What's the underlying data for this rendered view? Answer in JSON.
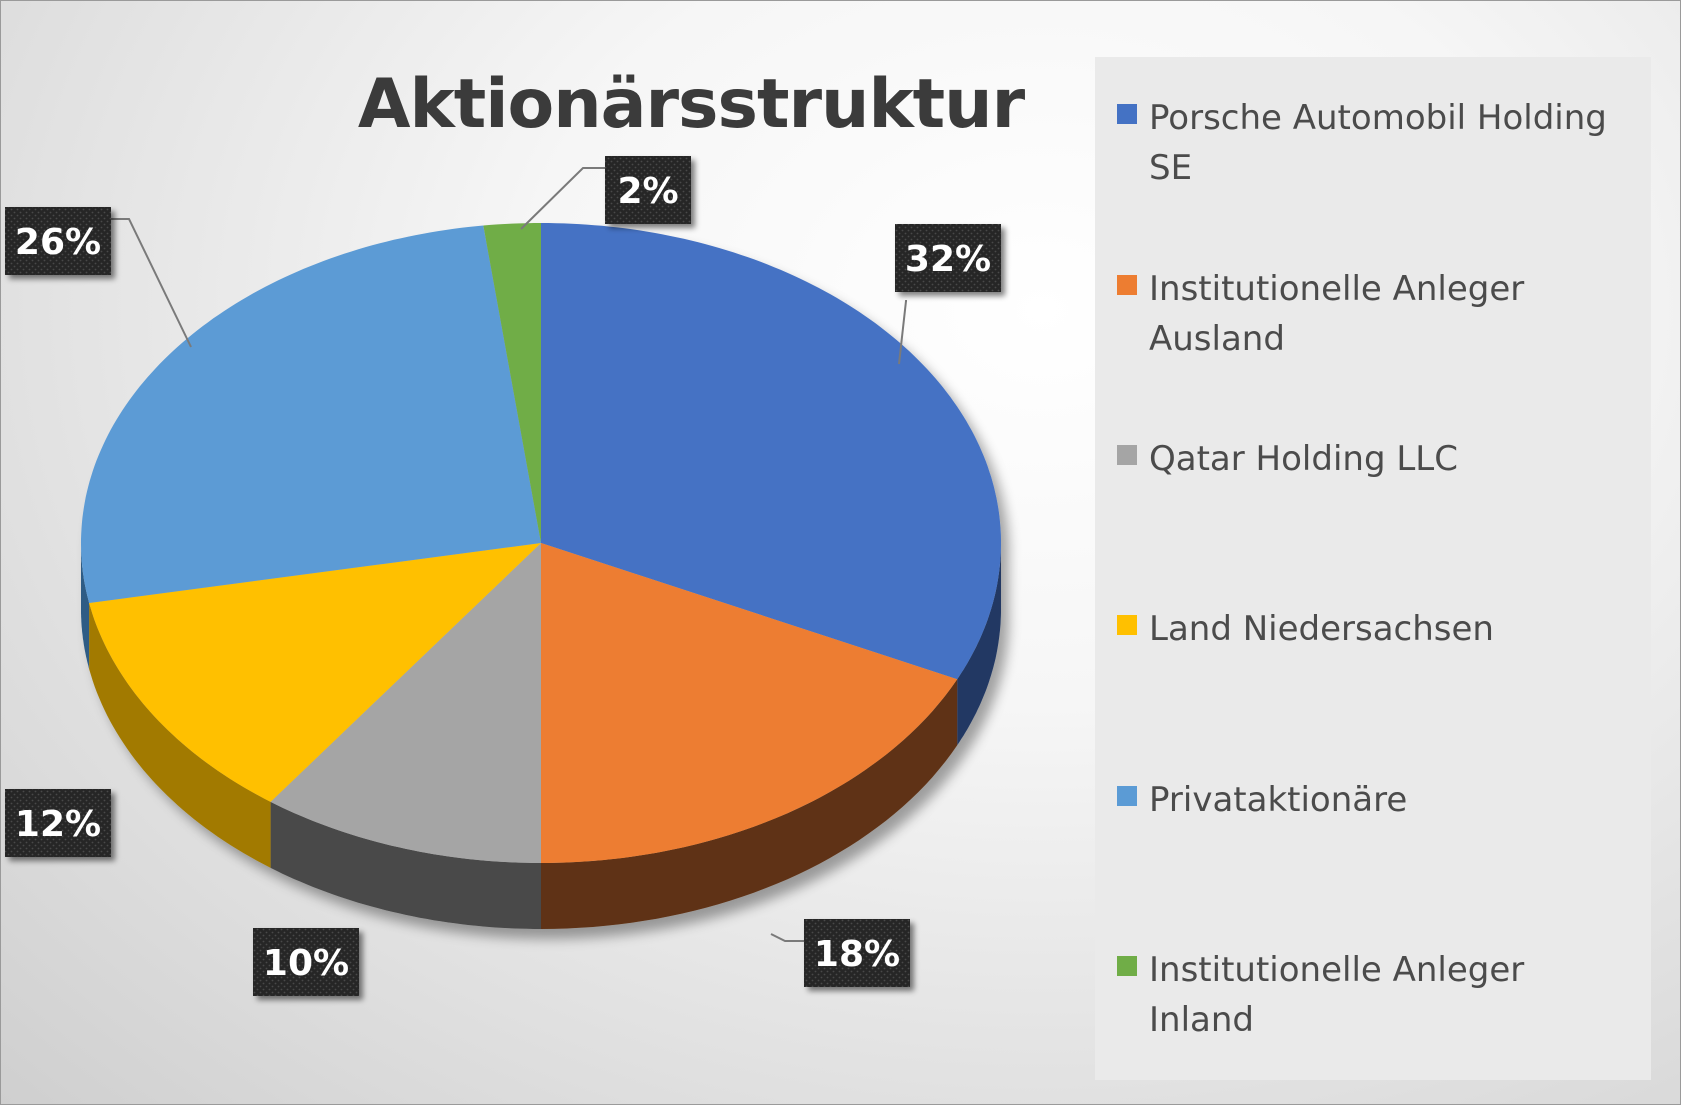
{
  "chart_data": {
    "type": "pie",
    "title": "Aktionärsstruktur",
    "slices": [
      {
        "label": "Porsche Automobil Holding SE",
        "value": 32,
        "display": "32%",
        "color": "#4472C4",
        "side_color": "#203864"
      },
      {
        "label": "Institutionelle Anleger Ausland",
        "value": 18,
        "display": "18%",
        "color": "#ED7D31",
        "side_color": "#5E3214"
      },
      {
        "label": "Qatar Holding LLC",
        "value": 10,
        "display": "10%",
        "color": "#A5A5A5",
        "side_color": "#4A4A4A"
      },
      {
        "label": "Land Niedersachsen",
        "value": 12,
        "display": "12%",
        "color": "#FFC000",
        "side_color": "#A27A00"
      },
      {
        "label": "Privataktionäre",
        "value": 26,
        "display": "26%",
        "color": "#5B9BD5",
        "side_color": "#2E5C85"
      },
      {
        "label": "Institutionelle Anleger Inland",
        "value": 2,
        "display": "2%",
        "color": "#70AD47",
        "side_color": "#3D6426"
      }
    ],
    "legend_position": "right",
    "style": "3d"
  }
}
